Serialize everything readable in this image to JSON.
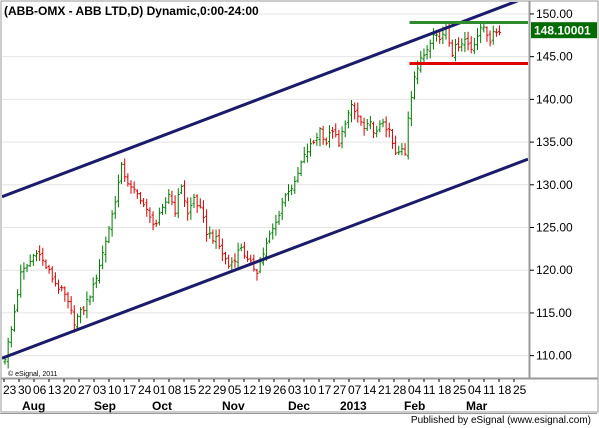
{
  "chart_data": {
    "type": "candlestick",
    "title": "(ABB-OMX - ABB LTD,D) Dynamic,0:00-24:00",
    "symbol": "ABB-OMX",
    "name": "ABB LTD",
    "period": "D",
    "session": "Dynamic,0:00-24:00",
    "ylim": [
      107.5,
      151.4
    ],
    "y_ticks": [
      "110.00",
      "115.00",
      "120.00",
      "125.00",
      "130.00",
      "135.00",
      "140.00",
      "145.00",
      "150.00"
    ],
    "last_value": "148.10001",
    "x_day_labels": [
      "23",
      "30",
      "06",
      "13",
      "20",
      "27",
      "03",
      "10",
      "17",
      "24",
      "01",
      "08",
      "15",
      "22",
      "29",
      "05",
      "12",
      "19",
      "26",
      "03",
      "10",
      "17",
      "27",
      "07",
      "14",
      "21",
      "28",
      "04",
      "11",
      "18",
      "25",
      "04",
      "11",
      "18",
      "25"
    ],
    "x_month_labels": [
      "Aug",
      "Sep",
      "Oct",
      "Nov",
      "Dec",
      "2013",
      "Feb",
      "Mar"
    ],
    "close_anchors": [
      [
        0,
        109.8
      ],
      [
        2,
        113.0
      ],
      [
        5,
        119.5
      ],
      [
        8,
        121.0
      ],
      [
        10,
        122.4
      ],
      [
        13,
        120.4
      ],
      [
        16,
        118.5
      ],
      [
        19,
        117.0
      ],
      [
        22,
        114.0
      ],
      [
        25,
        115.5
      ],
      [
        28,
        118.0
      ],
      [
        31,
        122.0
      ],
      [
        34,
        126.5
      ],
      [
        37,
        132.0
      ],
      [
        40,
        129.5
      ],
      [
        43,
        128.5
      ],
      [
        46,
        126.0
      ],
      [
        48,
        125.5
      ],
      [
        50,
        127.0
      ],
      [
        52,
        129.0
      ],
      [
        54,
        127.0
      ],
      [
        56,
        130.0
      ],
      [
        58,
        126.5
      ],
      [
        60,
        128.5
      ],
      [
        62,
        127.0
      ],
      [
        64,
        124.5
      ],
      [
        67,
        123.5
      ],
      [
        69,
        122.0
      ],
      [
        71,
        120.5
      ],
      [
        73,
        121.5
      ],
      [
        75,
        122.8
      ],
      [
        77,
        121.0
      ],
      [
        80,
        120.0
      ],
      [
        82,
        122.0
      ],
      [
        84,
        124.0
      ],
      [
        86,
        125.5
      ],
      [
        88,
        128.0
      ],
      [
        90,
        129.5
      ],
      [
        92,
        130.0
      ],
      [
        94,
        132.5
      ],
      [
        96,
        134.0
      ],
      [
        98,
        135.0
      ],
      [
        100,
        136.5
      ],
      [
        102,
        135.0
      ],
      [
        104,
        136.5
      ],
      [
        106,
        134.5
      ],
      [
        108,
        137.5
      ],
      [
        110,
        139.0
      ],
      [
        112,
        138.0
      ],
      [
        114,
        136.5
      ],
      [
        116,
        137.0
      ],
      [
        118,
        136.0
      ],
      [
        120,
        137.5
      ],
      [
        122,
        136.0
      ],
      [
        124,
        133.5
      ],
      [
        126,
        134.0
      ],
      [
        127,
        133.5
      ],
      [
        128,
        138.0
      ],
      [
        130,
        143.0
      ],
      [
        132,
        144.5
      ],
      [
        134,
        146.0
      ],
      [
        136,
        148.0
      ],
      [
        138,
        147.0
      ],
      [
        140,
        148.5
      ],
      [
        142,
        145.5
      ],
      [
        144,
        146.5
      ],
      [
        146,
        147.0
      ],
      [
        148,
        146.0
      ],
      [
        150,
        147.5
      ],
      [
        152,
        148.5
      ],
      [
        154,
        147.0
      ],
      [
        156,
        148.0
      ],
      [
        157,
        148.1
      ]
    ],
    "lines": [
      {
        "name": "channel-upper",
        "color": "#1b1b6b",
        "points": [
          [
            0,
            128.6
          ],
          [
            157,
            152.0
          ]
        ]
      },
      {
        "name": "channel-lower",
        "color": "#1b1b6b",
        "points": [
          [
            0,
            109.7
          ],
          [
            157,
            133.0
          ]
        ]
      },
      {
        "name": "resistance",
        "color": "#2e8b2e",
        "points": [
          [
            130,
            149.0
          ],
          [
            157,
            149.0
          ]
        ]
      },
      {
        "name": "support",
        "color": "#e00000",
        "points": [
          [
            130,
            144.2
          ],
          [
            157,
            144.2
          ]
        ]
      }
    ],
    "grid": true,
    "colors": {
      "up": "#007a00",
      "down": "#d40000",
      "background": "#ffffff",
      "last_label_bg": "#006b00"
    }
  },
  "copyright": "© eSignal, 2011",
  "footer": "Published by eSignal (www.esignal.com)"
}
